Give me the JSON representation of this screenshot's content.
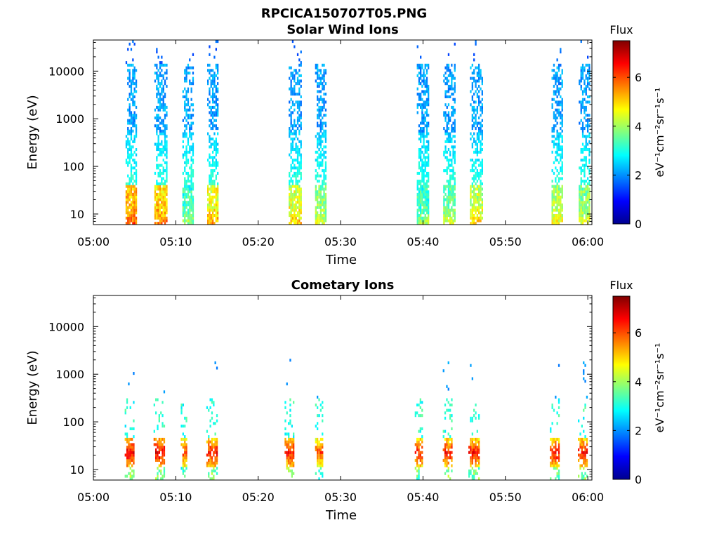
{
  "figure_title": "RPCICA150707T05.PNG",
  "colormap": [
    "#00008f",
    "#0000ff",
    "#0080ff",
    "#00ffff",
    "#80ff80",
    "#ffff00",
    "#ff8000",
    "#ff0000",
    "#800000"
  ],
  "chart_data": [
    {
      "type": "heatmap",
      "title": "Solar Wind Ions",
      "xlabel": "Time",
      "ylabel": "Energy (eV)",
      "x_ticks": [
        "05:00",
        "05:10",
        "05:20",
        "05:30",
        "05:40",
        "05:50",
        "06:00"
      ],
      "x_range_minutes": [
        0,
        60.5
      ],
      "y_scale": "log",
      "y_range": [
        6,
        45000
      ],
      "y_ticks": [
        {
          "value": 10,
          "label": "10"
        },
        {
          "value": 100,
          "label": "100"
        },
        {
          "value": 1000,
          "label": "1000"
        },
        {
          "value": 10000,
          "label": "10000"
        }
      ],
      "colorbar": {
        "title": "Flux",
        "label": "eV⁻¹cm⁻²sr⁻¹s⁻¹",
        "range": [
          0,
          7.5
        ],
        "ticks": [
          "0",
          "2",
          "4",
          "6"
        ]
      },
      "bursts": [
        {
          "center_min": 4.6,
          "width_min": 1.4,
          "peak_flux": 5.8
        },
        {
          "center_min": 8.2,
          "width_min": 1.6,
          "peak_flux": 5.6
        },
        {
          "center_min": 11.5,
          "width_min": 1.4,
          "peak_flux": 3.8
        },
        {
          "center_min": 14.5,
          "width_min": 1.4,
          "peak_flux": 5.2
        },
        {
          "center_min": 24.5,
          "width_min": 1.6,
          "peak_flux": 5.0
        },
        {
          "center_min": 27.6,
          "width_min": 1.4,
          "peak_flux": 4.4
        },
        {
          "center_min": 40.0,
          "width_min": 1.5,
          "peak_flux": 3.8
        },
        {
          "center_min": 43.2,
          "width_min": 1.5,
          "peak_flux": 4.2
        },
        {
          "center_min": 46.5,
          "width_min": 1.6,
          "peak_flux": 4.8
        },
        {
          "center_min": 56.3,
          "width_min": 1.4,
          "peak_flux": 4.6
        },
        {
          "center_min": 59.6,
          "width_min": 1.4,
          "peak_flux": 4.4
        }
      ]
    },
    {
      "type": "heatmap",
      "title": "Cometary Ions",
      "xlabel": "Time",
      "ylabel": "Energy (eV)",
      "x_ticks": [
        "05:00",
        "05:10",
        "05:20",
        "05:30",
        "05:40",
        "05:50",
        "06:00"
      ],
      "x_range_minutes": [
        0,
        60.5
      ],
      "y_scale": "log",
      "y_range": [
        6,
        45000
      ],
      "y_ticks": [
        {
          "value": 10,
          "label": "10"
        },
        {
          "value": 100,
          "label": "100"
        },
        {
          "value": 1000,
          "label": "1000"
        },
        {
          "value": 10000,
          "label": "10000"
        }
      ],
      "colorbar": {
        "title": "Flux",
        "label": "eV⁻¹cm⁻²sr⁻¹s⁻¹",
        "range": [
          0,
          7.5
        ],
        "ticks": [
          "0",
          "2",
          "4",
          "6"
        ]
      },
      "bursts": [
        {
          "center_min": 4.4,
          "width_min": 1.2,
          "peak_flux": 7.2
        },
        {
          "center_min": 8.0,
          "width_min": 1.4,
          "peak_flux": 7.2
        },
        {
          "center_min": 11.0,
          "width_min": 0.8,
          "peak_flux": 6.6
        },
        {
          "center_min": 14.4,
          "width_min": 1.4,
          "peak_flux": 7.0
        },
        {
          "center_min": 23.8,
          "width_min": 1.2,
          "peak_flux": 7.0
        },
        {
          "center_min": 27.4,
          "width_min": 1.0,
          "peak_flux": 6.6
        },
        {
          "center_min": 39.5,
          "width_min": 1.0,
          "peak_flux": 6.8
        },
        {
          "center_min": 43.0,
          "width_min": 1.2,
          "peak_flux": 7.0
        },
        {
          "center_min": 46.2,
          "width_min": 1.4,
          "peak_flux": 7.0
        },
        {
          "center_min": 56.0,
          "width_min": 1.2,
          "peak_flux": 7.0
        },
        {
          "center_min": 59.4,
          "width_min": 1.2,
          "peak_flux": 7.0
        }
      ]
    }
  ]
}
